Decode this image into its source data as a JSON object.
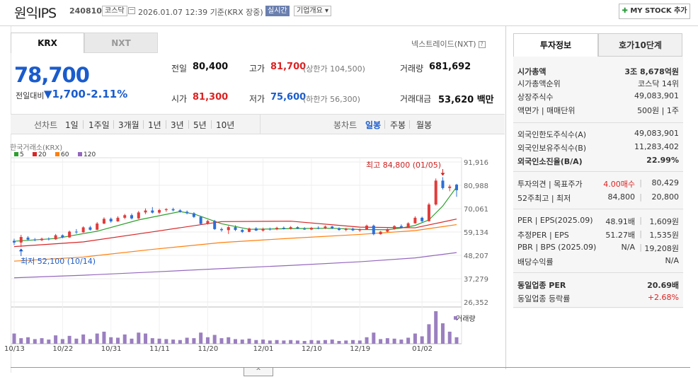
{
  "header": {
    "company_name": "원익IPS",
    "stock_code": "240810",
    "market": "코스닥",
    "datetime": "2026.01.07 12:39",
    "basis": "기준(KRX 장중)",
    "realtime_badge": "실시간",
    "company_overview": "기업개요 ▾",
    "my_stock_button": "MY STOCK 추가"
  },
  "market_tabs": [
    "KRX",
    "NXT"
  ],
  "nextrade_link": "넥스트레이드(NXT)",
  "price": {
    "current": "78,700",
    "change_label": "전일대비",
    "change": "1,700",
    "change_pct": "-2.11%"
  },
  "quote": {
    "prev_close_label": "전일",
    "prev_close": "80,400",
    "high_label": "고가",
    "high": "81,700",
    "upper_limit": "(상한가 104,500)",
    "volume_label": "거래량",
    "volume": "681,692",
    "open_label": "시가",
    "open": "81,300",
    "low_label": "저가",
    "low": "75,600",
    "lower_limit": "(하한가 56,300)",
    "amount_label": "거래대금",
    "amount": "53,620",
    "amount_unit": "백만"
  },
  "chart_tabs": {
    "line_label": "선차트",
    "periods": [
      "1일",
      "1주일",
      "3개월",
      "1년",
      "3년",
      "5년",
      "10년"
    ],
    "candle_label": "봉차트",
    "candle_periods": [
      "일봉",
      "주봉",
      "월봉"
    ]
  },
  "chart_legend": {
    "source": "한국거래소(KRX)",
    "ma": [
      {
        "label": "5",
        "color": "#2ca02c"
      },
      {
        "label": "20",
        "color": "#d62728"
      },
      {
        "label": "60",
        "color": "#ff7f0e"
      },
      {
        "label": "120",
        "color": "#9467bd"
      }
    ],
    "volume_label": "거래량"
  },
  "chart_annotations": {
    "high": "최고 84,800 (01/05)",
    "low": "최저 52,100 (10/14)"
  },
  "chart_data": {
    "type": "candlestick",
    "y_ticks": [
      "91,916",
      "80,988",
      "70,061",
      "59,134",
      "48,207",
      "37,279",
      "26,352"
    ],
    "ylim": [
      26352,
      91916
    ],
    "x_ticks": [
      "10/13",
      "10/22",
      "10/31",
      "11/11",
      "11/20",
      "12/01",
      "12/10",
      "12/19",
      "01/02"
    ],
    "candles": [
      [
        55000,
        56000,
        53000,
        54200
      ],
      [
        54200,
        57800,
        52100,
        56800
      ],
      [
        56500,
        57200,
        55000,
        55600
      ],
      [
        55600,
        56300,
        54800,
        55300
      ],
      [
        55300,
        56500,
        54900,
        56000
      ],
      [
        56000,
        56600,
        55200,
        55700
      ],
      [
        55700,
        58200,
        55500,
        57600
      ],
      [
        57600,
        58000,
        56200,
        56600
      ],
      [
        56600,
        59800,
        56400,
        59300
      ],
      [
        59300,
        60500,
        58300,
        59000
      ],
      [
        59000,
        61800,
        58800,
        61300
      ],
      [
        61300,
        62000,
        59800,
        60200
      ],
      [
        60200,
        63800,
        60000,
        63100
      ],
      [
        63100,
        66000,
        62800,
        65300
      ],
      [
        65300,
        65900,
        63500,
        64100
      ],
      [
        64100,
        66500,
        63900,
        65800
      ],
      [
        65800,
        67600,
        65200,
        67000
      ],
      [
        67000,
        67800,
        65000,
        65500
      ],
      [
        65500,
        69000,
        65200,
        68300
      ],
      [
        68300,
        70200,
        67500,
        69200
      ],
      [
        69200,
        70800,
        67800,
        68200
      ],
      [
        68200,
        70000,
        67600,
        69400
      ],
      [
        69400,
        70300,
        68600,
        69800
      ],
      [
        69800,
        70500,
        68800,
        69300
      ],
      [
        69300,
        69800,
        68200,
        68600
      ],
      [
        68600,
        69200,
        67400,
        67900
      ],
      [
        67900,
        68400,
        65700,
        66200
      ],
      [
        66200,
        66700,
        62500,
        62900
      ],
      [
        62900,
        64800,
        62600,
        64300
      ],
      [
        64300,
        64800,
        60100,
        60500
      ],
      [
        60500,
        61200,
        59300,
        60000
      ],
      [
        60000,
        62000,
        58200,
        61400
      ],
      [
        61400,
        62300,
        59600,
        60100
      ],
      [
        60100,
        60600,
        58700,
        59200
      ],
      [
        59200,
        61200,
        59000,
        60800
      ],
      [
        60800,
        61400,
        59600,
        59800
      ],
      [
        59800,
        61200,
        59300,
        60600
      ],
      [
        60600,
        61200,
        59800,
        60400
      ],
      [
        60400,
        61600,
        60000,
        61100
      ],
      [
        61100,
        61700,
        60300,
        60600
      ],
      [
        60600,
        61900,
        60300,
        61400
      ],
      [
        61400,
        61800,
        60500,
        60700
      ],
      [
        60700,
        61400,
        60100,
        60300
      ],
      [
        60300,
        61500,
        60000,
        61100
      ],
      [
        61100,
        61800,
        60400,
        60800
      ],
      [
        60800,
        62200,
        60500,
        61700
      ],
      [
        61700,
        62000,
        60500,
        60900
      ],
      [
        60900,
        61300,
        59700,
        60100
      ],
      [
        60100,
        61100,
        59500,
        60700
      ],
      [
        60700,
        61200,
        59600,
        59900
      ],
      [
        59900,
        60800,
        59200,
        60400
      ],
      [
        60400,
        62600,
        60200,
        62100
      ],
      [
        62100,
        62600,
        57600,
        58100
      ],
      [
        58100,
        59600,
        57900,
        59300
      ],
      [
        59300,
        60900,
        59000,
        60500
      ],
      [
        60500,
        62300,
        60200,
        61900
      ],
      [
        61900,
        62700,
        60800,
        61300
      ],
      [
        61300,
        63700,
        61000,
        63200
      ],
      [
        63200,
        66500,
        63000,
        65800
      ],
      [
        65800,
        66300,
        63600,
        64200
      ],
      [
        64200,
        72800,
        64000,
        72000
      ],
      [
        72000,
        84200,
        71500,
        83200
      ],
      [
        83200,
        84800,
        79000,
        79700
      ],
      [
        79700,
        81300,
        78200,
        80400
      ],
      [
        81300,
        81700,
        75600,
        78700
      ]
    ],
    "ma": {
      "5": [
        [
          0,
          54800
        ],
        [
          6,
          56100
        ],
        [
          12,
          59500
        ],
        [
          18,
          64800
        ],
        [
          24,
          68700
        ],
        [
          26,
          67600
        ],
        [
          30,
          63000
        ],
        [
          34,
          60400
        ],
        [
          40,
          60700
        ],
        [
          46,
          60900
        ],
        [
          50,
          60300
        ],
        [
          54,
          60200
        ],
        [
          56,
          61000
        ],
        [
          58,
          62200
        ],
        [
          60,
          64800
        ],
        [
          62,
          71300
        ],
        [
          64,
          80200
        ]
      ],
      "20": [
        [
          0,
          52300
        ],
        [
          10,
          54500
        ],
        [
          20,
          59200
        ],
        [
          30,
          64000
        ],
        [
          40,
          64200
        ],
        [
          50,
          61400
        ],
        [
          58,
          61100
        ],
        [
          64,
          65200
        ]
      ],
      "60": [
        [
          0,
          45500
        ],
        [
          10,
          47400
        ],
        [
          20,
          51000
        ],
        [
          30,
          54200
        ],
        [
          40,
          56200
        ],
        [
          50,
          58000
        ],
        [
          58,
          59800
        ],
        [
          64,
          62600
        ]
      ],
      "120": [
        [
          0,
          37700
        ],
        [
          10,
          38900
        ],
        [
          20,
          40400
        ],
        [
          30,
          42000
        ],
        [
          40,
          43500
        ],
        [
          50,
          45200
        ],
        [
          58,
          47000
        ],
        [
          64,
          49500
        ]
      ]
    },
    "volume": [
      22,
      12,
      14,
      10,
      12,
      9,
      18,
      10,
      17,
      11,
      20,
      10,
      22,
      26,
      14,
      13,
      20,
      11,
      24,
      22,
      12,
      11,
      10,
      9,
      8,
      13,
      12,
      24,
      14,
      19,
      12,
      14,
      10,
      9,
      11,
      8,
      9,
      7,
      8,
      7,
      8,
      7,
      6,
      8,
      7,
      8,
      9,
      6,
      7,
      8,
      7,
      14,
      24,
      10,
      12,
      11,
      9,
      13,
      22,
      16,
      42,
      70,
      44,
      26,
      14
    ]
  },
  "right_panel": {
    "tabs": [
      "투자정보",
      "호가10단계"
    ],
    "rows": [
      {
        "label": "시가총액",
        "value": "3조 8,678억원",
        "bold": true
      },
      {
        "label": "시가총액순위",
        "value": "코스닥 14위"
      },
      {
        "label": "상장주식수",
        "value": "49,083,901"
      },
      {
        "label": "액면가 | 매매단위",
        "value": "500원 | 1주"
      },
      {
        "label": "외국인한도주식수(A)",
        "value": "49,083,901"
      },
      {
        "label": "외국인보유주식수(B)",
        "value": "11,283,402"
      },
      {
        "label": "외국인소진율(B/A)",
        "value": "22.99%",
        "bold": true
      },
      {
        "label": "투자의견 | 목표주가",
        "value_left": "4.00매수",
        "value": "80,429"
      },
      {
        "label": "52주최고 | 최저",
        "value_left": "84,800",
        "value": "20,800"
      },
      {
        "label": "PER | EPS(2025.09)",
        "value_left": "48.91배",
        "value": "1,609원"
      },
      {
        "label": "추정PER | EPS",
        "value_left": "51.27배",
        "value": "1,535원"
      },
      {
        "label": "PBR | BPS (2025.09)",
        "value_left": "N/A",
        "value": "19,208원"
      },
      {
        "label": "배당수익률",
        "value": "N/A"
      },
      {
        "label": "동일업종 PER",
        "value": "20.69배",
        "bold": true
      },
      {
        "label": "동일업종 등락률",
        "value": "+2.68%"
      }
    ]
  },
  "expand_label": "^"
}
